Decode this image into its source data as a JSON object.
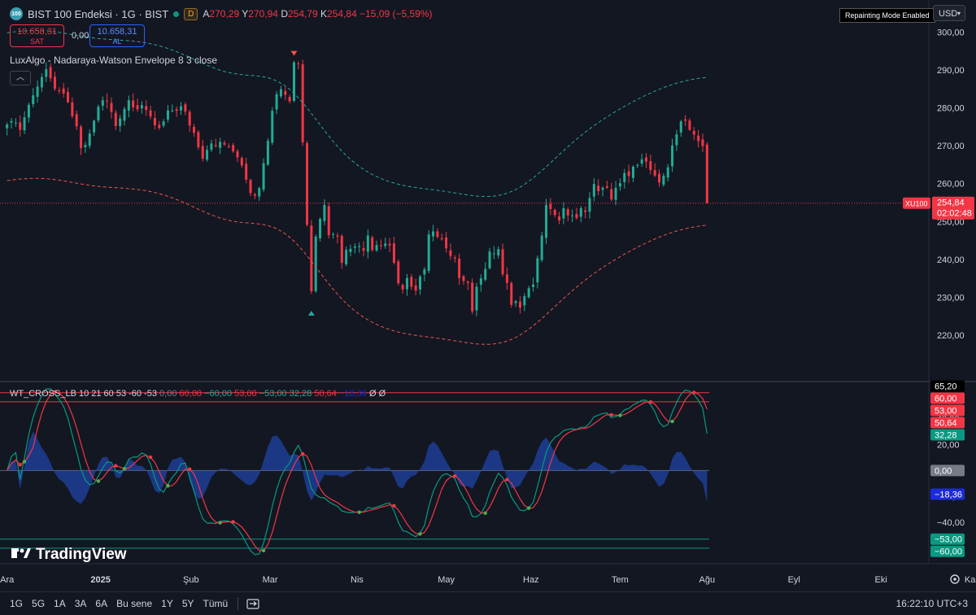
{
  "header": {
    "logo_text": "100",
    "symbol": "BIST 100 Endeksi · 1G · BIST",
    "badge": "D",
    "ohlc": [
      {
        "k": "A",
        "v": "270,29"
      },
      {
        "k": "Y",
        "v": "270,94"
      },
      {
        "k": "D",
        "v": "254,79"
      },
      {
        "k": "K",
        "v": "254,84 −15,09 (−5,59%)"
      }
    ]
  },
  "trade": {
    "sell_price": "10.658,31",
    "sell_label": "SAT",
    "spread": "0,00",
    "buy_price": "10.658,31",
    "buy_label": "AL"
  },
  "repaint_badge": "Repainting Mode Enabled",
  "currency": "USD",
  "indicator1": {
    "title": "LuxAlgo - Nadaraya-Watson Envelope 8 3 close"
  },
  "indicator2": {
    "title": "WT_CROSS_LB 10 21 60 53 -60 -53",
    "values": [
      {
        "t": "0,00",
        "c": "#787b86"
      },
      {
        "t": "60,00",
        "c": "#f23645"
      },
      {
        "t": "−60,00",
        "c": "#22ab94"
      },
      {
        "t": "53,00",
        "c": "#f23645"
      },
      {
        "t": "−53,00",
        "c": "#22ab94"
      },
      {
        "t": "32,28",
        "c": "#22ab94"
      },
      {
        "t": "50,64",
        "c": "#f23645"
      },
      {
        "t": "−18,36",
        "c": "#1c2bd9"
      },
      {
        "t": "Ø",
        "c": "#d1d4dc"
      },
      {
        "t": "Ø",
        "c": "#d1d4dc"
      }
    ]
  },
  "chart_data": [
    {
      "type": "candlestick",
      "title": "BIST 100 Endeksi · 1G · BIST",
      "ylim": [
        208,
        302
      ],
      "y_ticks": [
        220,
        230,
        240,
        250,
        260,
        270,
        280,
        290,
        300
      ],
      "y_tick_labels": [
        "220,00",
        "230,00",
        "240,00",
        "250,00",
        "260,00",
        "270,00",
        "280,00",
        "290,00",
        "300,00"
      ],
      "x_labels": [
        "Ara",
        "2025",
        "Şub",
        "Mar",
        "Nis",
        "May",
        "Haz",
        "Tem",
        "Ağu",
        "Eyl",
        "Eki",
        "Kas"
      ],
      "x_label_pos": [
        0,
        21.5,
        42.3,
        60.5,
        80.5,
        101,
        120.5,
        141,
        161,
        181,
        201,
        222
      ],
      "closes": [
        275.6,
        276.5,
        276.1,
        274.2,
        277.5,
        280.8,
        283.3,
        285.6,
        288.1,
        290.2,
        287.8,
        285.0,
        284.5,
        283.8,
        281.5,
        277.8,
        275.1,
        269.4,
        270.2,
        273.2,
        276.6,
        280.3,
        282.0,
        281.7,
        278.9,
        275.2,
        277.2,
        279.7,
        282.0,
        280.1,
        279.6,
        280.7,
        279.4,
        277.7,
        275.4,
        274.7,
        276.4,
        279.3,
        279.3,
        279.2,
        280.4,
        279.0,
        275.3,
        273.4,
        269.6,
        266.6,
        268.9,
        270.6,
        269.9,
        271.0,
        270.3,
        269.8,
        268.5,
        266.9,
        264.8,
        261.0,
        257.5,
        256.8,
        258.8,
        265.4,
        271.3,
        279.2,
        283.6,
        284.9,
        283.4,
        281.7,
        292.0,
        291.6,
        270.9,
        249.1,
        231.6,
        246.0,
        250.7,
        254.4,
        246.4,
        246.7,
        246.0,
        239.1,
        242.5,
        242.8,
        243.4,
        243.5,
        242.3,
        246.3,
        242.5,
        243.8,
        243.7,
        244.2,
        243.7,
        239.1,
        233.7,
        232.1,
        235.1,
        232.8,
        231.8,
        235.5,
        237.4,
        246.6,
        247.4,
        245.9,
        245.3,
        242.9,
        240.9,
        240.2,
        235.1,
        234.3,
        233.8,
        226.3,
        232.8,
        235.0,
        237.5,
        242.1,
        241.6,
        242.7,
        236.1,
        233.8,
        228.0,
        229.0,
        227.3,
        230.3,
        232.4,
        233.4,
        240.3,
        246.3,
        254.4,
        253.3,
        251.7,
        250.3,
        253.5,
        251.6,
        251.6,
        250.9,
        253.5,
        252.5,
        256.2,
        259.9,
        258.0,
        258.9,
        258.9,
        255.8,
        258.9,
        260.1,
        262.8,
        262.0,
        264.5,
        264.9,
        266.4,
        265.8,
        263.6,
        262.1,
        260.3,
        262.1,
        264.3,
        270.1,
        273.0,
        276.4,
        276.6,
        274.2,
        272.9,
        271.2,
        269.9,
        254.8
      ],
      "upper_band_expr": "mid + 19.5",
      "lower_band_expr": "mid - 19.5",
      "last_label": "XU100",
      "last_price": "254,84",
      "countdown": "02:02:48",
      "signals": [
        {
          "type": "sell",
          "index": 66
        },
        {
          "type": "buy",
          "index": 70
        }
      ]
    },
    {
      "type": "line",
      "title": "WT_CROSS_LB 10 21 60 53 -60 -53",
      "ylim": [
        -72,
        68
      ],
      "y_ticks": [
        -40,
        -20,
        20,
        40
      ],
      "y_tick_labels": [
        "−40,00",
        "−20,00",
        "20,00",
        "40,00"
      ],
      "levels": [
        {
          "value": 65.2,
          "label": "65,20",
          "bg": "#000000",
          "fg": "#ffffff"
        },
        {
          "value": 60,
          "label": "60,00",
          "bg": "#f23645",
          "fg": "#ffffff"
        },
        {
          "value": 53,
          "label": "53,00",
          "bg": "#f23645",
          "fg": "#ffffff"
        },
        {
          "value": 50.64,
          "label": "50,64",
          "bg": "#f23645",
          "fg": "#ffffff"
        },
        {
          "value": 32.28,
          "label": "32,28",
          "bg": "#089981",
          "fg": "#ffffff"
        },
        {
          "value": 0,
          "label": "0,00",
          "bg": "#787b86",
          "fg": "#ffffff"
        },
        {
          "value": -18.36,
          "label": "−18,36",
          "bg": "#1c2bd9",
          "fg": "#ffffff"
        },
        {
          "value": -53,
          "label": "−53,00",
          "bg": "#089981",
          "fg": "#ffffff"
        },
        {
          "value": -60,
          "label": "−60,00",
          "bg": "#089981",
          "fg": "#ffffff"
        }
      ],
      "series": [
        {
          "name": "wt1",
          "color": "#089981"
        },
        {
          "name": "wt2",
          "color": "#f23645"
        },
        {
          "name": "hist",
          "color": "#2962ff"
        }
      ]
    }
  ],
  "bottom": {
    "ranges": [
      "1G",
      "5G",
      "1A",
      "3A",
      "6A",
      "Bu sene",
      "1Y",
      "5Y",
      "Tümü"
    ],
    "clock": "16:22:10 UTC+3"
  },
  "brand": "TradingView",
  "colors": {
    "up": "#22ab94",
    "down": "#f23645",
    "bg": "#131722",
    "envelope_up": "#26a69a",
    "envelope_dn": "#ef5350"
  }
}
